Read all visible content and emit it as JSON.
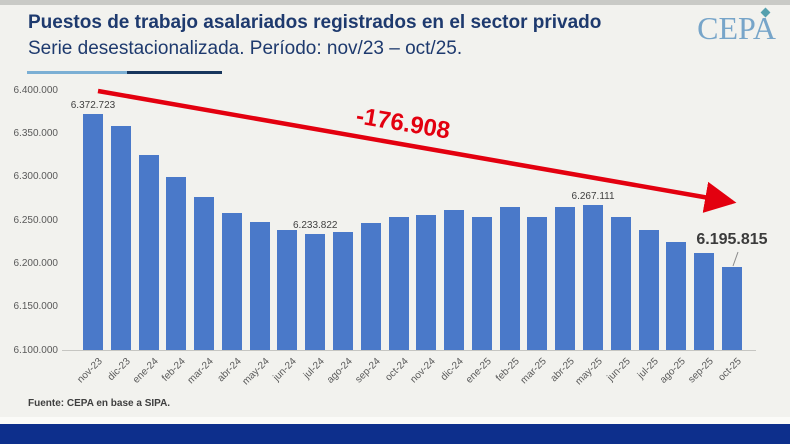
{
  "header": {
    "title": "Puestos de trabajo asalariados registrados en el sector privado",
    "subtitle": "Serie desestacionalizada. Período: nov/23 – oct/25.",
    "logo": "CEPA"
  },
  "chart_data": {
    "type": "bar",
    "title": "Puestos de trabajo asalariados registrados en el sector privado",
    "subtitle": "Serie desestacionalizada. Período: nov/23 – oct/25.",
    "xlabel": "",
    "ylabel": "",
    "grid": false,
    "legend": false,
    "ylim": [
      6100000,
      6400000
    ],
    "bar_color": "#4a79c9",
    "categories": [
      "nov-23",
      "dic-23",
      "ene-24",
      "feb-24",
      "mar-24",
      "abr-24",
      "may-24",
      "jun-24",
      "jul-24",
      "ago-24",
      "sep-24",
      "oct-24",
      "nov-24",
      "dic-24",
      "ene-25",
      "feb-25",
      "mar-25",
      "abr-25",
      "may-25",
      "jun-25",
      "jul-25",
      "ago-25",
      "sep-25",
      "oct-25"
    ],
    "values": [
      6372723,
      6359000,
      6325500,
      6300000,
      6276000,
      6258000,
      6248000,
      6238000,
      6233822,
      6236500,
      6246000,
      6254000,
      6255500,
      6262000,
      6253000,
      6264500,
      6254000,
      6264500,
      6267111,
      6253000,
      6238500,
      6225000,
      6211500,
      6195815
    ],
    "y_ticks": [
      "6.400.000",
      "6.350.000",
      "6.300.000",
      "6.250.000",
      "6.200.000",
      "6.150.000",
      "6.100.000"
    ],
    "data_labels": [
      {
        "index": 0,
        "text": "6.372.723",
        "emphasis": false
      },
      {
        "index": 8,
        "text": "6.233.822",
        "emphasis": false
      },
      {
        "index": 18,
        "text": "6.267.111",
        "emphasis": false
      },
      {
        "index": 23,
        "text": "6.195.815",
        "emphasis": true
      }
    ],
    "annotation": {
      "text": "-176.908",
      "color": "#e3000f"
    }
  },
  "footer": {
    "source": "Fuente: CEPA en base a SIPA."
  }
}
